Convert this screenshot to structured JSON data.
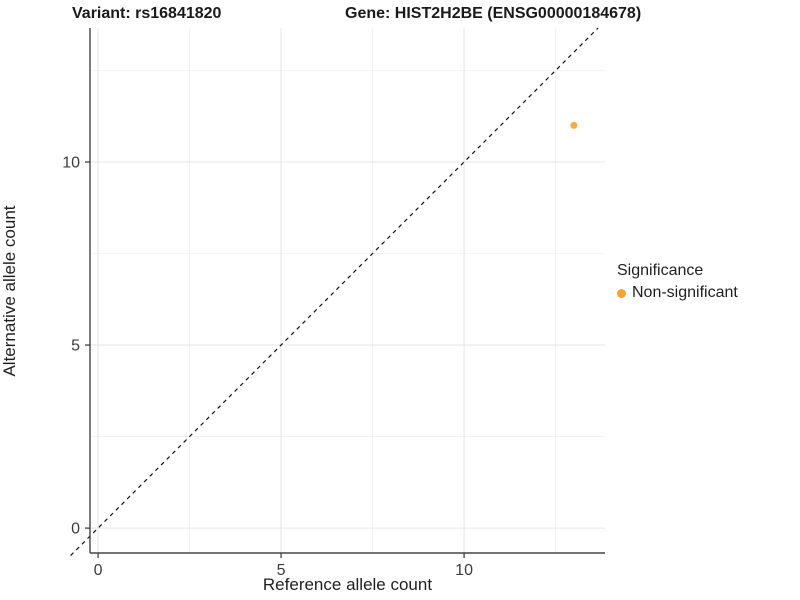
{
  "titles": {
    "variant": "Variant: rs16841820",
    "gene": "Gene: HIST2H2BE (ENSG00000184678)"
  },
  "axes": {
    "x_label": "Reference allele count",
    "y_label": "Alternative allele count",
    "x_tick_labels": [
      "0",
      "5",
      "10"
    ],
    "y_tick_labels": [
      "0",
      "5",
      "10"
    ]
  },
  "legend": {
    "title": "Significance",
    "items": [
      {
        "label": "Non-significant",
        "color": "#FBA22B"
      }
    ]
  },
  "chart_data": {
    "type": "scatter",
    "title": "Variant: rs16841820 — Gene: HIST2H2BE (ENSG00000184678)",
    "xlabel": "Reference allele count",
    "ylabel": "Alternative allele count",
    "xlim": [
      -0.22,
      13.85
    ],
    "ylim": [
      -0.68,
      13.66
    ],
    "x_ticks": [
      0,
      5,
      10
    ],
    "y_ticks": [
      0,
      5,
      10
    ],
    "x_minor_ticks": [
      2.5,
      7.5,
      12.5
    ],
    "y_minor_ticks": [
      2.5,
      7.5,
      12.5
    ],
    "grid": true,
    "legend_position": "right",
    "series": [
      {
        "name": "Non-significant",
        "color": "#FBA22B",
        "points": [
          {
            "x": 13,
            "y": 11
          }
        ]
      }
    ],
    "reference_line": {
      "type": "identity",
      "slope": 1,
      "intercept": 0,
      "style": "dashed",
      "color": "#111111"
    }
  },
  "style_colors": {
    "axis_line": "#464646",
    "tick": "#333333",
    "tick_label": "#3c3c3c",
    "grid_major": "#e4e4e4",
    "grid_minor": "#f0f0f0"
  }
}
